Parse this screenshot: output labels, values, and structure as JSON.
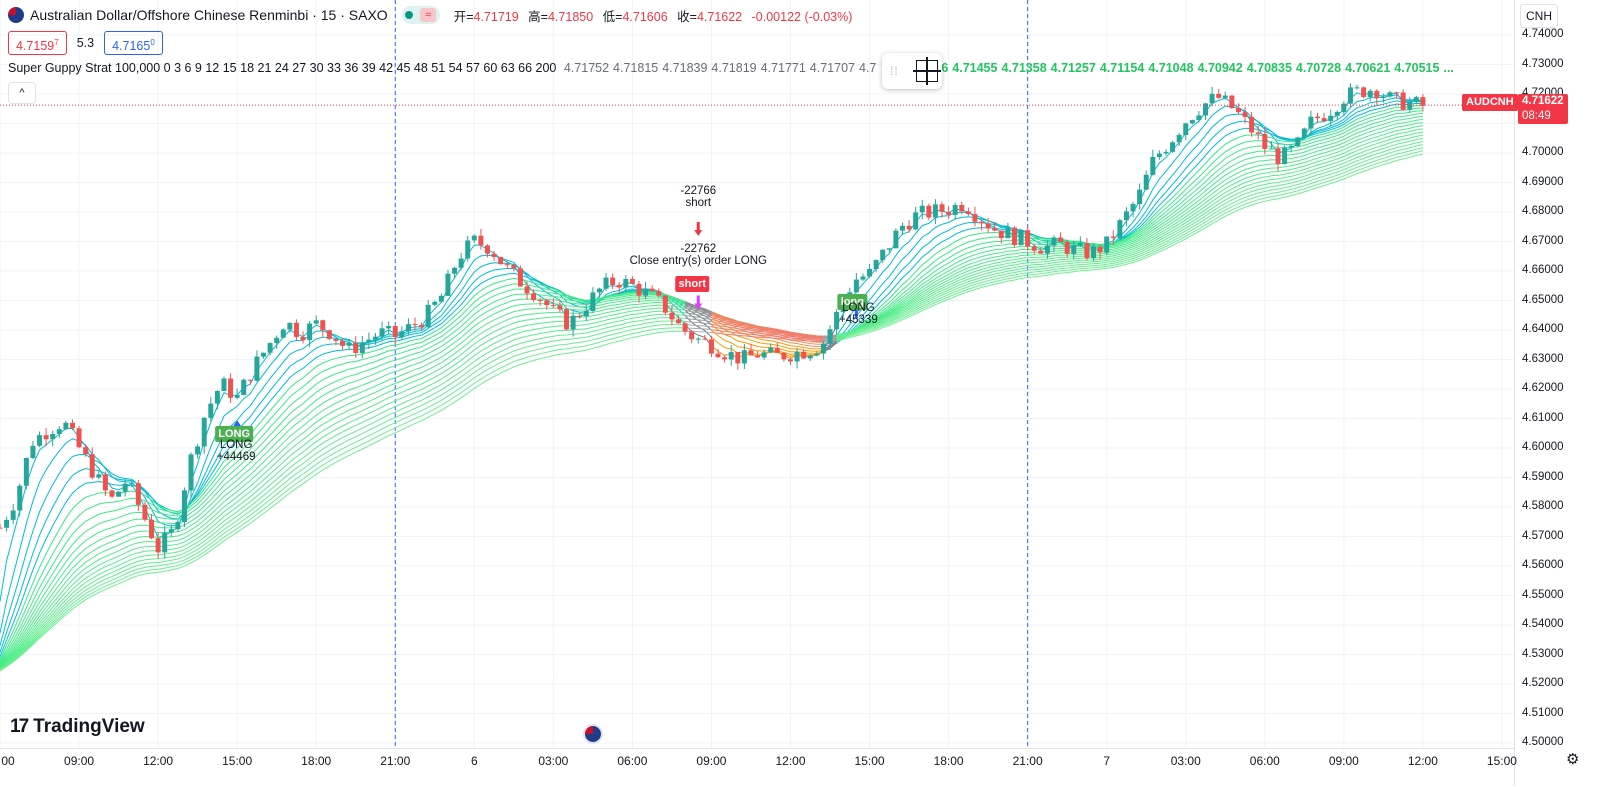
{
  "header": {
    "title": "Australian Dollar/Offshore Chinese Renminbi · 15 · SAXO",
    "open_label": "开=",
    "open": "4.71719",
    "high_label": "高=",
    "high": "4.71850",
    "low_label": "低=",
    "low": "4.71606",
    "close_label": "收=",
    "close": "4.71622",
    "change": "-0.00122 (-0.03%)",
    "wave_icon": "≈"
  },
  "quote": {
    "bid": "4.7159",
    "bid_sup": "7",
    "spread": "5.3",
    "ask": "4.7165",
    "ask_sup": "0"
  },
  "indicator": {
    "label": "Super Guppy Strat 100,000 0 3 6 9 12 15 18 21 24 27 30 33 36 39 42 45 48 51 54 57 60 63 66 200",
    "values_gray": [
      "4.71752",
      "4.71815",
      "4.71839",
      "4.71819",
      "4.71771",
      "4.71707",
      "4.7"
    ],
    "values_green": [
      "46",
      "4.71455",
      "4.71358",
      "4.71257",
      "4.71154",
      "4.71048",
      "4.70942",
      "4.70835",
      "4.70728",
      "4.70621",
      "4.70515",
      "..."
    ]
  },
  "collapse_icon": "^",
  "axis": {
    "currency": "CNH",
    "symbol_tag": "AUDCNH",
    "last_price": "4.71622",
    "countdown": "08:49",
    "price_labels": [
      {
        "text": "4.74000",
        "v": 4.74
      },
      {
        "text": "4.73000",
        "v": 4.73
      },
      {
        "text": "4.72000",
        "v": 4.72
      },
      {
        "text": "4.70000",
        "v": 4.7
      },
      {
        "text": "4.69000",
        "v": 4.69
      },
      {
        "text": "4.68000",
        "v": 4.68
      },
      {
        "text": "4.67000",
        "v": 4.67
      },
      {
        "text": "4.66000",
        "v": 4.66
      },
      {
        "text": "4.65000",
        "v": 4.65
      },
      {
        "text": "4.64000",
        "v": 4.64
      },
      {
        "text": "4.63000",
        "v": 4.63
      },
      {
        "text": "4.62000",
        "v": 4.62
      },
      {
        "text": "4.61000",
        "v": 4.61
      },
      {
        "text": "4.60000",
        "v": 4.6
      },
      {
        "text": "4.59000",
        "v": 4.59
      },
      {
        "text": "4.58000",
        "v": 4.58
      },
      {
        "text": "4.57000",
        "v": 4.57
      },
      {
        "text": "4.56000",
        "v": 4.56
      },
      {
        "text": "4.55000",
        "v": 4.55
      },
      {
        "text": "4.54000",
        "v": 4.54
      },
      {
        "text": "4.53000",
        "v": 4.53
      },
      {
        "text": "4.52000",
        "v": 4.52
      },
      {
        "text": "4.51000",
        "v": 4.51
      },
      {
        "text": "4.50000",
        "v": 4.5
      }
    ],
    "time_labels": [
      {
        "text": "00",
        "t": 0
      },
      {
        "text": "09:00",
        "t": 3
      },
      {
        "text": "12:00",
        "t": 6
      },
      {
        "text": "15:00",
        "t": 9
      },
      {
        "text": "18:00",
        "t": 12
      },
      {
        "text": "21:00",
        "t": 15
      },
      {
        "text": "6",
        "t": 18
      },
      {
        "text": "03:00",
        "t": 21
      },
      {
        "text": "06:00",
        "t": 24
      },
      {
        "text": "09:00",
        "t": 27
      },
      {
        "text": "12:00",
        "t": 30
      },
      {
        "text": "15:00",
        "t": 33
      },
      {
        "text": "18:00",
        "t": 36
      },
      {
        "text": "21:00",
        "t": 39
      },
      {
        "text": "7",
        "t": 42
      },
      {
        "text": "03:00",
        "t": 45
      },
      {
        "text": "06:00",
        "t": 48
      },
      {
        "text": "09:00",
        "t": 51
      },
      {
        "text": "12:00",
        "t": 54
      },
      {
        "text": "15:00",
        "t": 57
      }
    ]
  },
  "annotations": {
    "long1_tag": "LONG",
    "long1_label": "LONG",
    "long1_pnl": "+44469",
    "short_top_pnl": "-22766",
    "short_top_label": "short",
    "close_pnl": "-22762",
    "close_label": "Close entry(s) order LONG",
    "short_tag": "short",
    "long2_tag": "long",
    "long2_label": "LONG",
    "long2_pnl": "+45339"
  },
  "brand": "TradingView",
  "colors": {
    "up": "#26a69a",
    "down": "#ef5350",
    "ribbon_green": "#00e676",
    "ribbon_gray": "#787b86",
    "ribbon_red": "#f23645",
    "ribbon_orange": "#ff9800",
    "ribbon_blue": "#00bcd4",
    "session": "#2962ff"
  },
  "chart_data": {
    "type": "candlestick",
    "symbol": "AUDCNH",
    "interval": "15",
    "ylim": [
      4.5,
      4.74
    ],
    "x_unit": "hours",
    "xlim": [
      0,
      57
    ],
    "session_breaks": [
      15,
      39
    ],
    "close_path": [
      [
        0,
        4.573
      ],
      [
        0.6,
        4.583
      ],
      [
        1.2,
        4.602
      ],
      [
        1.8,
        4.606
      ],
      [
        2.4,
        4.609
      ],
      [
        3,
        4.6
      ],
      [
        3.6,
        4.591
      ],
      [
        4.2,
        4.582
      ],
      [
        4.8,
        4.589
      ],
      [
        5.4,
        4.578
      ],
      [
        6,
        4.566
      ],
      [
        6.6,
        4.572
      ],
      [
        7.2,
        4.595
      ],
      [
        7.8,
        4.612
      ],
      [
        8.4,
        4.622
      ],
      [
        9,
        4.617
      ],
      [
        9.6,
        4.627
      ],
      [
        10.2,
        4.635
      ],
      [
        10.8,
        4.643
      ],
      [
        11.4,
        4.639
      ],
      [
        12,
        4.642
      ],
      [
        12.6,
        4.639
      ],
      [
        13.2,
        4.633
      ],
      [
        13.8,
        4.636
      ],
      [
        14.4,
        4.639
      ],
      [
        15,
        4.638
      ],
      [
        15.6,
        4.641
      ],
      [
        16.2,
        4.645
      ],
      [
        16.8,
        4.652
      ],
      [
        17.4,
        4.665
      ],
      [
        18,
        4.67
      ],
      [
        18.6,
        4.668
      ],
      [
        19.2,
        4.661
      ],
      [
        19.8,
        4.656
      ],
      [
        20.4,
        4.652
      ],
      [
        21,
        4.646
      ],
      [
        21.6,
        4.642
      ],
      [
        22.2,
        4.648
      ],
      [
        22.8,
        4.654
      ],
      [
        23.4,
        4.657
      ],
      [
        24,
        4.655
      ],
      [
        24.6,
        4.652
      ],
      [
        25.2,
        4.648
      ],
      [
        25.8,
        4.641
      ],
      [
        26.4,
        4.637
      ],
      [
        27,
        4.635
      ],
      [
        27.6,
        4.632
      ],
      [
        28.2,
        4.63
      ],
      [
        28.8,
        4.632
      ],
      [
        29.4,
        4.631
      ],
      [
        30,
        4.632
      ],
      [
        30.6,
        4.633
      ],
      [
        31.2,
        4.635
      ],
      [
        31.8,
        4.646
      ],
      [
        32.4,
        4.657
      ],
      [
        33,
        4.659
      ],
      [
        33.6,
        4.667
      ],
      [
        34.2,
        4.675
      ],
      [
        34.8,
        4.679
      ],
      [
        35.4,
        4.68
      ],
      [
        36,
        4.681
      ],
      [
        36.6,
        4.683
      ],
      [
        37.2,
        4.678
      ],
      [
        37.8,
        4.674
      ],
      [
        38.4,
        4.672
      ],
      [
        39,
        4.67
      ],
      [
        39.6,
        4.668
      ],
      [
        40.2,
        4.669
      ],
      [
        40.8,
        4.667
      ],
      [
        41.4,
        4.666
      ],
      [
        42,
        4.669
      ],
      [
        42.6,
        4.677
      ],
      [
        43.2,
        4.685
      ],
      [
        43.8,
        4.698
      ],
      [
        44.4,
        4.704
      ],
      [
        45,
        4.711
      ],
      [
        45.6,
        4.716
      ],
      [
        46.2,
        4.719
      ],
      [
        46.8,
        4.715
      ],
      [
        47.4,
        4.709
      ],
      [
        48,
        4.702
      ],
      [
        48.6,
        4.698
      ],
      [
        49.2,
        4.702
      ],
      [
        49.8,
        4.711
      ],
      [
        50.4,
        4.714
      ],
      [
        51,
        4.719
      ],
      [
        51.6,
        4.721
      ],
      [
        52.2,
        4.722
      ],
      [
        52.8,
        4.718
      ],
      [
        53.4,
        4.717
      ],
      [
        54,
        4.716
      ]
    ],
    "guppy_ribbon": {
      "lengths": [
        3,
        6,
        9,
        12,
        15,
        18,
        21,
        24,
        27,
        30,
        33,
        36,
        39,
        42,
        45,
        48,
        51,
        54,
        57,
        60,
        63,
        66
      ],
      "slow_ema_length": 200,
      "last_values": [
        4.71752,
        4.71815,
        4.71839,
        4.71819,
        4.71771,
        4.71707,
        4.71455,
        4.71358,
        4.71257,
        4.71154,
        4.71048,
        4.70942,
        4.70835,
        4.70728,
        4.70621,
        4.70515
      ]
    },
    "trades": [
      {
        "type": "long_entry",
        "t": 9,
        "price": 4.604,
        "label": "LONG",
        "pnl": "+44469"
      },
      {
        "type": "short_entry",
        "t": 26.5,
        "price": 4.651,
        "label": "short",
        "pnl": "-22766"
      },
      {
        "type": "close_long",
        "t": 26.5,
        "price": 4.651,
        "label": "Close entry(s) order LONG",
        "pnl": "-22762"
      },
      {
        "type": "long_entry",
        "t": 32.5,
        "price": 4.644,
        "label": "LONG",
        "pnl": "+45339"
      }
    ],
    "last_price": 4.71622
  }
}
